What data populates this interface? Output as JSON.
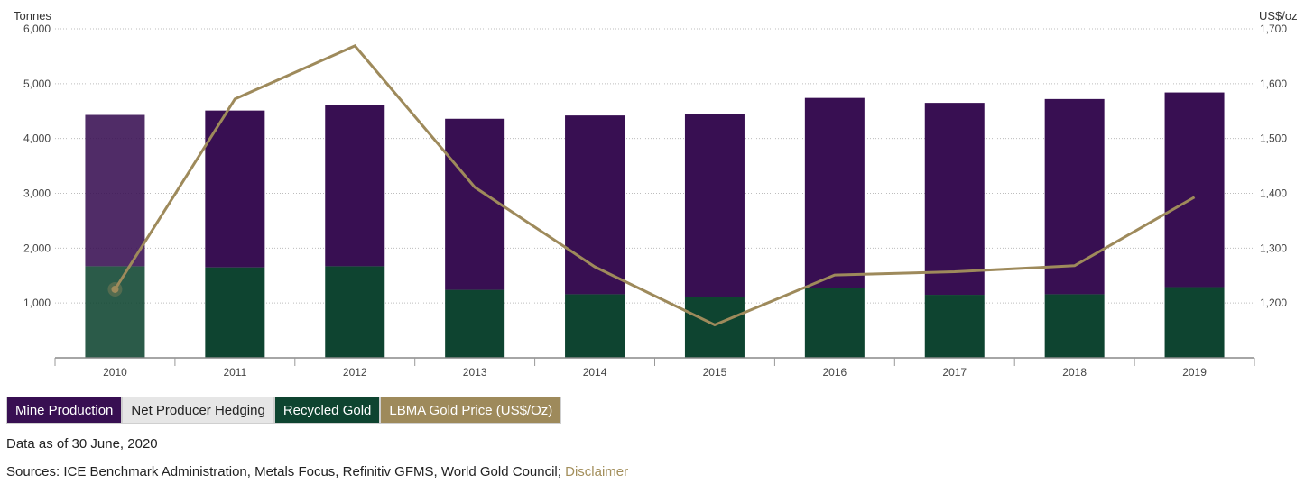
{
  "chart_data": {
    "type": "bar",
    "categories": [
      "2010",
      "2011",
      "2012",
      "2013",
      "2014",
      "2015",
      "2016",
      "2017",
      "2018",
      "2019"
    ],
    "series": [
      {
        "name": "Recycled Gold",
        "kind": "bar",
        "axis": "left",
        "color": "#0e4430",
        "values": [
          1670,
          1650,
          1670,
          1240,
          1160,
          1110,
          1280,
          1150,
          1160,
          1290
        ]
      },
      {
        "name": "Mine Production",
        "kind": "bar",
        "axis": "left",
        "color": "#380f52",
        "values": [
          2760,
          2860,
          2940,
          3120,
          3260,
          3340,
          3460,
          3500,
          3560,
          3550
        ]
      },
      {
        "name": "Net Producer Hedging",
        "kind": "bar",
        "axis": "left",
        "color": "#e6e6e6",
        "values": [
          0,
          0,
          0,
          0,
          0,
          0,
          0,
          0,
          0,
          0
        ]
      },
      {
        "name": "LBMA Gold Price (US$/Oz)",
        "kind": "line",
        "axis": "right",
        "color": "#9e8a5b",
        "values": [
          1225,
          1572,
          1669,
          1411,
          1266,
          1160,
          1251,
          1257,
          1268,
          1393
        ]
      }
    ],
    "left_axis": {
      "label": "Tonnes",
      "min": 0,
      "max": 6000,
      "ticks": [
        1000,
        2000,
        3000,
        4000,
        5000,
        6000
      ],
      "tick_labels": [
        "1,000",
        "2,000",
        "3,000",
        "4,000",
        "5,000",
        "6,000"
      ]
    },
    "right_axis": {
      "label": "US$/oz",
      "min": 1100,
      "max": 1700,
      "ticks": [
        1200,
        1300,
        1400,
        1500,
        1600,
        1700
      ],
      "tick_labels": [
        "1,200",
        "1,300",
        "1,400",
        "1,500",
        "1,600",
        "1,700"
      ]
    },
    "highlighted_category": "2010",
    "grid": true,
    "legend_position": "bottom-left"
  },
  "legend": {
    "items": [
      {
        "label": "Mine Production",
        "bg": "#380f52",
        "fg": "#ffffff"
      },
      {
        "label": "Net Producer Hedging",
        "bg": "#e6e6e6",
        "fg": "#222222"
      },
      {
        "label": "Recycled Gold",
        "bg": "#0e4430",
        "fg": "#ffffff"
      },
      {
        "label": "LBMA Gold Price (US$/Oz)",
        "bg": "#9e8a5b",
        "fg": "#ffffff"
      }
    ]
  },
  "footer": {
    "as_of": "Data as of 30 June, 2020",
    "sources": "Sources: ICE Benchmark Administration, Metals Focus, Refinitiv GFMS, World Gold Council;",
    "disclaimer": "Disclaimer"
  }
}
